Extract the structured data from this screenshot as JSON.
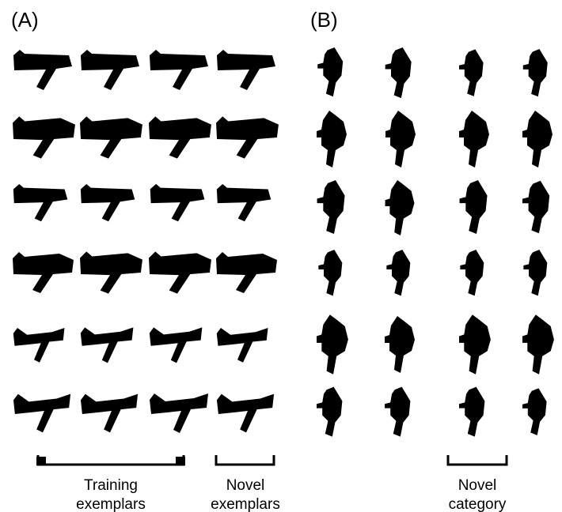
{
  "panels": [
    {
      "label": "(A)",
      "groups": [
        {
          "lines": [
            "Training",
            "exemplars"
          ]
        },
        {
          "lines": [
            "Novel",
            "exemplars"
          ]
        }
      ]
    },
    {
      "label": "(B)",
      "groups": [
        {
          "lines": [
            "Novel",
            "category"
          ]
        }
      ]
    }
  ]
}
